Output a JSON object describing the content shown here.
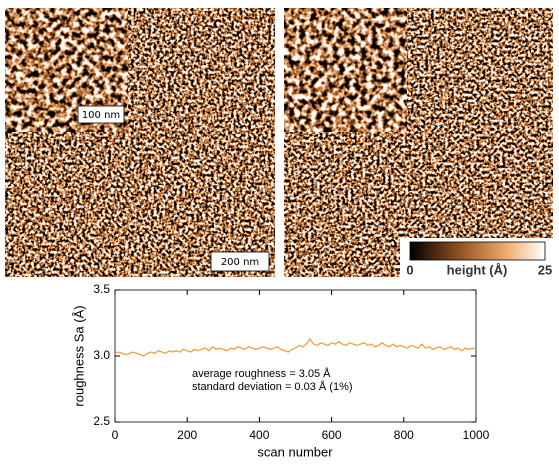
{
  "images": {
    "scale_left": "200 nm",
    "scale_inset": "100 nm"
  },
  "colorbar": {
    "label": "height (Å)",
    "clim": [
      0,
      25
    ],
    "ticks": [
      0,
      25
    ]
  },
  "chart_data": {
    "type": "line",
    "ylabel": "roughness Sa (Å)",
    "xlabel": "scan number",
    "color": "#f0a040",
    "annotations": [
      "average roughness = 3.05 Å",
      "standard deviation = 0.03 Å (1%)"
    ],
    "xlim": [
      0,
      1000
    ],
    "xticks": [
      0,
      200,
      400,
      600,
      800,
      1000
    ],
    "ylim": [
      2.5,
      3.5
    ],
    "yticks": [
      2.5,
      {
        "value": 3.0,
        "label": "3.0"
      },
      3.5
    ],
    "x": [
      0,
      10,
      20,
      30,
      40,
      50,
      60,
      70,
      80,
      90,
      100,
      110,
      120,
      130,
      140,
      150,
      160,
      170,
      180,
      190,
      200,
      210,
      220,
      230,
      240,
      250,
      260,
      270,
      280,
      290,
      300,
      310,
      320,
      330,
      340,
      350,
      360,
      370,
      380,
      390,
      400,
      410,
      420,
      430,
      440,
      450,
      460,
      470,
      480,
      490,
      500,
      510,
      520,
      530,
      540,
      550,
      560,
      570,
      580,
      590,
      600,
      610,
      620,
      630,
      640,
      650,
      660,
      670,
      680,
      690,
      700,
      710,
      720,
      730,
      740,
      750,
      760,
      770,
      780,
      790,
      800,
      810,
      820,
      830,
      840,
      850,
      860,
      870,
      880,
      890,
      900,
      910,
      920,
      930,
      940,
      950,
      960,
      970,
      980,
      990,
      1000
    ],
    "values": [
      3.02,
      3.03,
      3.02,
      3.01,
      3.02,
      3.03,
      3.02,
      3.01,
      3.0,
      3.02,
      3.03,
      3.02,
      3.04,
      3.03,
      3.02,
      3.04,
      3.03,
      3.04,
      3.03,
      3.05,
      3.04,
      3.03,
      3.05,
      3.04,
      3.05,
      3.06,
      3.04,
      3.07,
      3.05,
      3.06,
      3.05,
      3.04,
      3.06,
      3.05,
      3.07,
      3.06,
      3.05,
      3.07,
      3.06,
      3.05,
      3.06,
      3.07,
      3.06,
      3.05,
      3.06,
      3.07,
      3.05,
      3.04,
      3.03,
      3.05,
      3.06,
      3.08,
      3.07,
      3.09,
      3.13,
      3.09,
      3.08,
      3.1,
      3.09,
      3.08,
      3.1,
      3.09,
      3.11,
      3.09,
      3.08,
      3.1,
      3.09,
      3.08,
      3.09,
      3.1,
      3.08,
      3.09,
      3.07,
      3.08,
      3.1,
      3.08,
      3.07,
      3.09,
      3.07,
      3.08,
      3.07,
      3.06,
      3.08,
      3.07,
      3.06,
      3.09,
      3.06,
      3.07,
      3.05,
      3.06,
      3.07,
      3.05,
      3.06,
      3.07,
      3.05,
      3.06,
      3.04,
      3.06,
      3.05,
      3.06,
      3.05
    ]
  }
}
